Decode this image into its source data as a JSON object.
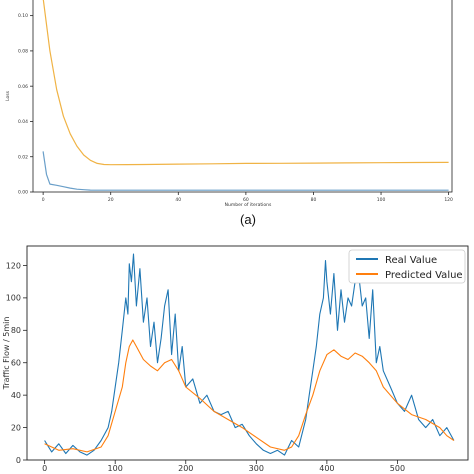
{
  "figure_label": "(a)",
  "chart_data": [
    {
      "type": "line",
      "xlabel": "Number of iterations",
      "ylabel": "Loss",
      "xlim": [
        -3,
        121
      ],
      "ylim": [
        0.0,
        0.11
      ],
      "xticks": [
        0,
        20,
        40,
        60,
        80,
        100,
        120
      ],
      "yticks": [
        0.0,
        0.02,
        0.04,
        0.06,
        0.08,
        0.1
      ],
      "ytick_labels": [
        "0.00",
        "0.02",
        "0.04",
        "0.06",
        "0.08",
        "0.10"
      ],
      "grid": false,
      "legend": "none",
      "series": [
        {
          "color": "#f0b345",
          "x": [
            0,
            2,
            4,
            6,
            8,
            10,
            12,
            14,
            16,
            18,
            20,
            30,
            40,
            50,
            60,
            70,
            80,
            90,
            100,
            110,
            120
          ],
          "values": [
            0.11,
            0.08,
            0.058,
            0.043,
            0.033,
            0.026,
            0.021,
            0.018,
            0.0162,
            0.0156,
            0.0155,
            0.0156,
            0.0158,
            0.016,
            0.0162,
            0.0163,
            0.0164,
            0.0165,
            0.0166,
            0.0167,
            0.0168
          ]
        },
        {
          "color": "#6a9fc9",
          "x": [
            0,
            1,
            2,
            4,
            6,
            8,
            10,
            12,
            14,
            16,
            20,
            40,
            60,
            80,
            100,
            120
          ],
          "values": [
            0.023,
            0.01,
            0.0045,
            0.0038,
            0.003,
            0.0022,
            0.0016,
            0.0013,
            0.0011,
            0.001,
            0.001,
            0.001,
            0.001,
            0.001,
            0.001,
            0.001
          ]
        }
      ]
    },
    {
      "type": "line",
      "xlabel": "",
      "ylabel": "Traffic Flow / 5min",
      "xlim": [
        -25,
        600
      ],
      "ylim": [
        0,
        132
      ],
      "xticks": [
        0,
        100,
        200,
        300,
        400,
        500
      ],
      "yticks": [
        0,
        20,
        40,
        60,
        80,
        100,
        120
      ],
      "grid": false,
      "legend": "top-right",
      "series": [
        {
          "name": "Real Value",
          "color": "#1f77b4",
          "x": [
            0,
            10,
            20,
            30,
            40,
            50,
            60,
            70,
            80,
            90,
            95,
            100,
            105,
            110,
            115,
            118,
            120,
            123,
            126,
            130,
            135,
            140,
            145,
            150,
            155,
            160,
            165,
            170,
            175,
            180,
            185,
            190,
            195,
            200,
            210,
            220,
            230,
            240,
            250,
            260,
            270,
            280,
            290,
            300,
            310,
            320,
            330,
            340,
            350,
            360,
            370,
            375,
            380,
            385,
            390,
            395,
            398,
            400,
            405,
            410,
            415,
            420,
            425,
            430,
            435,
            440,
            445,
            450,
            455,
            460,
            465,
            470,
            475,
            480,
            490,
            500,
            510,
            520,
            530,
            540,
            550,
            560,
            570,
            580
          ],
          "values": [
            12,
            5,
            10,
            4,
            9,
            5,
            3,
            6,
            12,
            20,
            30,
            45,
            60,
            80,
            100,
            90,
            121,
            110,
            127,
            95,
            118,
            85,
            100,
            70,
            85,
            60,
            75,
            95,
            105,
            65,
            90,
            55,
            70,
            45,
            50,
            35,
            40,
            30,
            28,
            30,
            20,
            22,
            15,
            10,
            6,
            4,
            6,
            3,
            12,
            8,
            25,
            40,
            55,
            70,
            90,
            100,
            123,
            110,
            90,
            115,
            80,
            105,
            85,
            100,
            95,
            110,
            115,
            95,
            100,
            75,
            105,
            60,
            70,
            55,
            45,
            35,
            30,
            40,
            25,
            20,
            25,
            15,
            20,
            12
          ]
        },
        {
          "name": "Predicted Value",
          "color": "#ff7f0e",
          "x": [
            0,
            20,
            40,
            60,
            80,
            90,
            100,
            110,
            115,
            120,
            125,
            130,
            140,
            150,
            160,
            170,
            180,
            190,
            200,
            220,
            240,
            260,
            280,
            300,
            320,
            340,
            350,
            360,
            370,
            380,
            390,
            400,
            410,
            420,
            430,
            440,
            450,
            460,
            470,
            480,
            500,
            520,
            540,
            560,
            570,
            580
          ],
          "values": [
            10,
            6,
            7,
            5,
            8,
            15,
            30,
            45,
            60,
            70,
            74,
            70,
            62,
            58,
            55,
            60,
            62,
            55,
            45,
            38,
            30,
            25,
            20,
            14,
            8,
            6,
            8,
            15,
            28,
            40,
            55,
            65,
            68,
            64,
            62,
            66,
            64,
            60,
            55,
            45,
            35,
            28,
            25,
            20,
            15,
            12
          ]
        }
      ]
    }
  ]
}
